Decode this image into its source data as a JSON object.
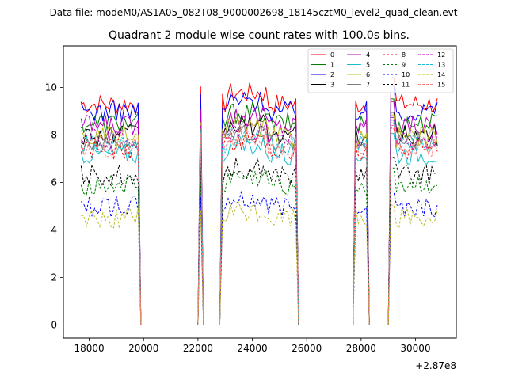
{
  "chart_data": {
    "type": "line",
    "suptitle": "Data file: modeM0/AS1A05_082T08_9000002698_18145cztM0_level2_quad_clean.evt",
    "title": "Quadrant 2 module wise count rates with 100.0s bins.",
    "xlabel": "",
    "ylabel": "",
    "x_offset_label": "+2.87e8",
    "xlim": [
      17050,
      31500
    ],
    "ylim": [
      -0.55,
      11.75
    ],
    "x_ticks": [
      18000,
      20000,
      22000,
      24000,
      26000,
      28000,
      30000
    ],
    "x_tick_labels": [
      "18000",
      "20000",
      "22000",
      "24000",
      "26000",
      "28000",
      "30000"
    ],
    "y_ticks": [
      0,
      2,
      4,
      6,
      8,
      10
    ],
    "y_tick_labels": [
      "0",
      "2",
      "4",
      "6",
      "8",
      "10"
    ],
    "time_bin_s": 100,
    "data_window_s": [
      17700,
      30800
    ],
    "good_time_intervals_s": [
      [
        17700,
        19800
      ],
      [
        22050,
        22150
      ],
      [
        22850,
        25650
      ],
      [
        27750,
        28250
      ],
      [
        29050,
        30800
      ]
    ],
    "legend_position": "top-right",
    "series": [
      {
        "name": "0",
        "color": "#ff0000",
        "dashed": false,
        "level": 9.3
      },
      {
        "name": "1",
        "color": "#008000",
        "dashed": false,
        "level": 8.5
      },
      {
        "name": "2",
        "color": "#0000ff",
        "dashed": false,
        "level": 9.0
      },
      {
        "name": "3",
        "color": "#000000",
        "dashed": false,
        "level": 8.0
      },
      {
        "name": "4",
        "color": "#bf00bf",
        "dashed": false,
        "level": 8.4
      },
      {
        "name": "5",
        "color": "#17becf",
        "dashed": false,
        "level": 7.2
      },
      {
        "name": "6",
        "color": "#bcbd22",
        "dashed": false,
        "level": 7.9
      },
      {
        "name": "7",
        "color": "#7f7f7f",
        "dashed": false,
        "level": 7.7
      },
      {
        "name": "8",
        "color": "#ff0000",
        "dashed": true,
        "level": 7.4
      },
      {
        "name": "9",
        "color": "#008000",
        "dashed": true,
        "level": 5.9
      },
      {
        "name": "10",
        "color": "#0000ff",
        "dashed": true,
        "level": 5.0
      },
      {
        "name": "11",
        "color": "#000000",
        "dashed": true,
        "level": 6.3
      },
      {
        "name": "12",
        "color": "#bf00bf",
        "dashed": true,
        "level": 7.8
      },
      {
        "name": "13",
        "color": "#17becf",
        "dashed": true,
        "level": 7.6
      },
      {
        "name": "14",
        "color": "#bcbd22",
        "dashed": true,
        "level": 4.5
      },
      {
        "name": "15",
        "color": "#ff7f7f",
        "dashed": true,
        "level": 7.5
      }
    ]
  }
}
